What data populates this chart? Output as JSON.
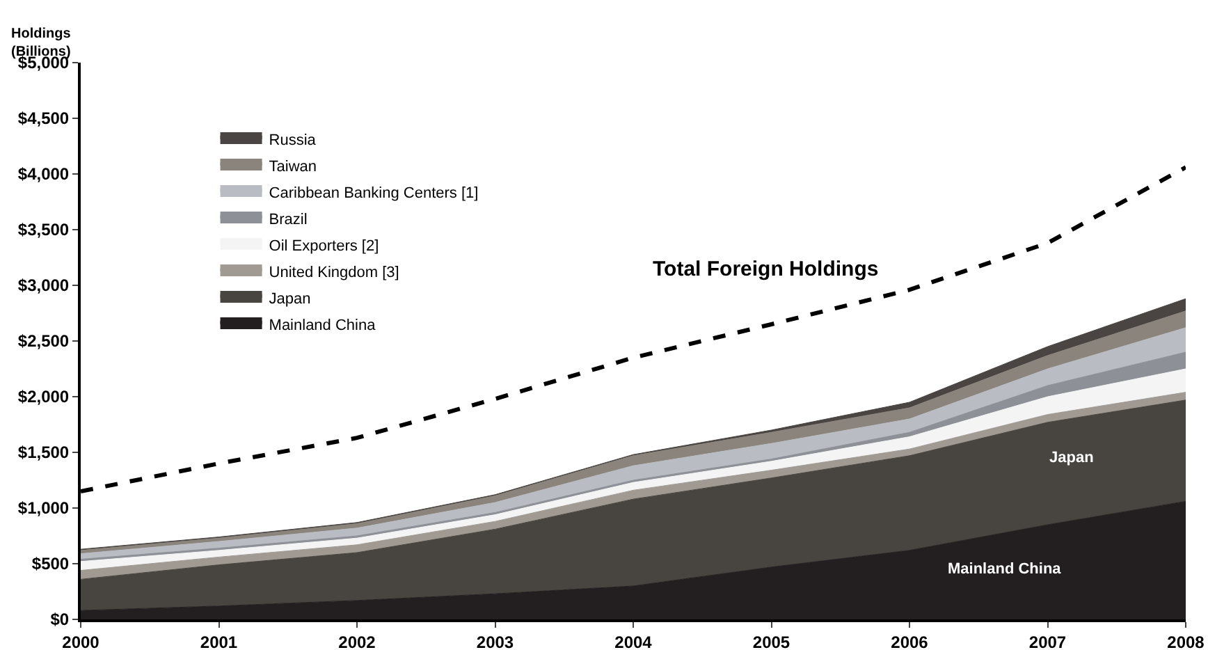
{
  "chart_data": {
    "type": "area",
    "stacked": true,
    "ylabel": "Holdings\n(Billions)",
    "x": [
      2000,
      2001,
      2002,
      2003,
      2004,
      2005,
      2006,
      2007,
      2008
    ],
    "xlim": [
      2000,
      2008
    ],
    "xticks": [
      2000,
      2001,
      2002,
      2003,
      2004,
      2005,
      2006,
      2007,
      2008
    ],
    "ylim": [
      0,
      5000
    ],
    "yticks": [
      {
        "value": 0,
        "label": "$0"
      },
      {
        "value": 500,
        "label": "$500"
      },
      {
        "value": 1000,
        "label": "$1,000"
      },
      {
        "value": 1500,
        "label": "$1,500"
      },
      {
        "value": 2000,
        "label": "$2,000"
      },
      {
        "value": 2500,
        "label": "$2,500"
      },
      {
        "value": 3000,
        "label": "$3,000"
      },
      {
        "value": 3500,
        "label": "$3,500"
      },
      {
        "value": 4000,
        "label": "$4,000"
      },
      {
        "value": 4500,
        "label": "$4,500"
      },
      {
        "value": 5000,
        "label": "$5,000"
      }
    ],
    "grid": false,
    "legend": "top left",
    "marker": "none",
    "series": [
      {
        "name": "Mainland China",
        "color": "#231f20",
        "values": [
          80,
          120,
          170,
          230,
          300,
          470,
          620,
          850,
          1060
        ]
      },
      {
        "name": "Japan",
        "color": "#48443f",
        "values": [
          280,
          370,
          430,
          580,
          780,
          800,
          850,
          920,
          910
        ]
      },
      {
        "name": "United Kingdom [3]",
        "color": "#a09a93",
        "values": [
          80,
          70,
          70,
          70,
          80,
          70,
          60,
          70,
          70
        ]
      },
      {
        "name": "Oil Exporters [2]",
        "color": "#f4f4f4",
        "values": [
          80,
          60,
          60,
          60,
          70,
          80,
          110,
          160,
          210
        ]
      },
      {
        "name": "Brazil",
        "color": "#8d9097",
        "values": [
          20,
          20,
          20,
          20,
          20,
          20,
          40,
          100,
          150
        ]
      },
      {
        "name": "Caribbean Banking Centers [1]",
        "color": "#b9bcc2",
        "values": [
          50,
          60,
          70,
          90,
          130,
          140,
          120,
          150,
          220
        ]
      },
      {
        "name": "Taiwan",
        "color": "#8a847c",
        "values": [
          30,
          30,
          40,
          60,
          90,
          100,
          100,
          120,
          150
        ]
      },
      {
        "name": "Russia",
        "color": "#4a4542",
        "values": [
          10,
          10,
          10,
          10,
          10,
          20,
          50,
          80,
          110
        ]
      },
      {
        "type": "line",
        "line_style": "dashed",
        "color": "#000000",
        "values": [
          1150,
          1400,
          1630,
          1980,
          2350,
          2650,
          2960,
          3380,
          4060
        ]
      }
    ],
    "annotations": [
      "Total Foreign Holdings",
      "Japan",
      "Mainland China"
    ]
  }
}
